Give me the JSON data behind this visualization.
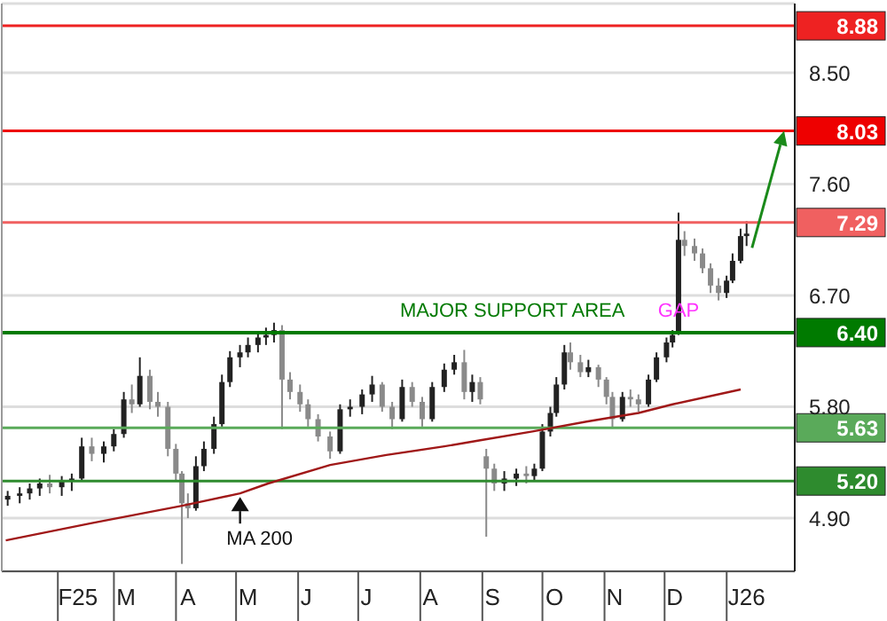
{
  "chart_data": {
    "type": "candlestick",
    "colors": [
      "#222222",
      "#222222",
      "#222222",
      "#222222",
      "#8a8a8a",
      "#222222",
      "#222222",
      "#222222",
      "#8a8a8a",
      "#222222",
      "#222222",
      "#222222",
      "#8a8a8a",
      "#222222",
      "#8a8a8a",
      "#8a8a8a",
      "#8a8a8a",
      "#8a8a8a",
      "#8a8a8a",
      "#8a8a8a",
      "#222222",
      "#222222",
      "#222222",
      "#222222",
      "#222222",
      "#222222",
      "#222222",
      "#222222",
      "#222222",
      "#222222",
      "#8a8a8a",
      "#8a8a8a",
      "#8a8a8a",
      "#8a8a8a",
      "#8a8a8a",
      "#8a8a8a",
      "#222222",
      "#222222",
      "#222222",
      "#222222",
      "#8a8a8a",
      "#8a8a8a",
      "#222222",
      "#8a8a8a",
      "#8a8a8a",
      "#222222",
      "#222222",
      "#222222",
      "#8a8a8a",
      "#222222",
      "#8a8a8a",
      "#8a8a8a",
      "#8a8a8a",
      "#222222",
      "#222222",
      "#8a8a8a",
      "#222222",
      "#222222",
      "#222222",
      "#222222",
      "#222222",
      "#8a8a8a",
      "#8a8a8a",
      "#222222",
      "#8a8a8a",
      "#8a8a8a",
      "#8a8a8a",
      "#222222",
      "#8a8a8a",
      "#8a8a8a",
      "#222222",
      "#222222",
      "#222222",
      "#222222",
      "#222222",
      "#8a8a8a",
      "#8a8a8a",
      "#8a8a8a",
      "#8a8a8a",
      "#8a8a8a",
      "#222222",
      "#222222",
      "#222222",
      "#222222"
    ],
    "x": [
      "2025-01-07",
      "2025-01-13",
      "2025-01-18",
      "2025-01-23",
      "2025-01-28",
      "2025-02-03",
      "2025-02-08",
      "2025-02-13",
      "2025-02-18",
      "2025-02-24",
      "2025-03-01",
      "2025-03-06",
      "2025-03-10",
      "2025-03-14",
      "2025-03-19",
      "2025-03-23",
      "2025-03-28",
      "2025-04-01",
      "2025-04-04",
      "2025-04-07",
      "2025-04-11",
      "2025-04-15",
      "2025-04-20",
      "2025-04-24",
      "2025-04-28",
      "2025-05-03",
      "2025-05-07",
      "2025-05-12",
      "2025-05-16",
      "2025-05-20",
      "2025-05-24",
      "2025-05-28",
      "2025-06-02",
      "2025-06-06",
      "2025-06-11",
      "2025-06-17",
      "2025-06-22",
      "2025-06-27",
      "2025-07-03",
      "2025-07-08",
      "2025-07-13",
      "2025-07-18",
      "2025-07-23",
      "2025-07-28",
      "2025-08-02",
      "2025-08-07",
      "2025-08-13",
      "2025-08-18",
      "2025-08-23",
      "2025-08-27",
      "2025-08-31",
      "2025-09-03",
      "2025-09-07",
      "2025-09-12",
      "2025-09-18",
      "2025-09-23",
      "2025-09-27",
      "2025-10-01",
      "2025-10-05",
      "2025-10-08",
      "2025-10-12",
      "2025-10-15",
      "2025-10-20",
      "2025-10-24",
      "2025-10-29",
      "2025-11-02",
      "2025-11-05",
      "2025-11-10",
      "2025-11-14",
      "2025-11-18",
      "2025-11-23",
      "2025-11-27",
      "2025-12-02",
      "2025-12-05",
      "2025-12-08",
      "2025-12-11",
      "2025-12-16",
      "2025-12-20",
      "2025-12-24",
      "2025-12-28",
      "2026-01-01",
      "2026-01-04",
      "2026-01-08",
      "2026-01-11"
    ],
    "ohlc": [
      [
        5.05,
        5.12,
        5.0,
        5.08
      ],
      [
        5.08,
        5.15,
        5.02,
        5.1
      ],
      [
        5.1,
        5.18,
        5.05,
        5.14
      ],
      [
        5.14,
        5.22,
        5.08,
        5.18
      ],
      [
        5.18,
        5.25,
        5.1,
        5.15
      ],
      [
        5.15,
        5.24,
        5.08,
        5.2
      ],
      [
        5.2,
        5.26,
        5.12,
        5.22
      ],
      [
        5.22,
        5.55,
        5.2,
        5.48
      ],
      [
        5.48,
        5.55,
        5.36,
        5.42
      ],
      [
        5.42,
        5.52,
        5.35,
        5.48
      ],
      [
        5.48,
        5.62,
        5.44,
        5.58
      ],
      [
        5.58,
        5.92,
        5.55,
        5.86
      ],
      [
        5.86,
        5.98,
        5.75,
        5.82
      ],
      [
        5.82,
        6.2,
        5.8,
        6.05
      ],
      [
        6.05,
        6.1,
        5.78,
        5.84
      ],
      [
        5.84,
        5.92,
        5.72,
        5.8
      ],
      [
        5.8,
        5.84,
        5.4,
        5.46
      ],
      [
        5.46,
        5.5,
        5.2,
        5.26
      ],
      [
        5.26,
        5.28,
        4.53,
        5.02
      ],
      [
        5.02,
        5.1,
        4.9,
        4.98
      ],
      [
        4.98,
        5.4,
        4.96,
        5.32
      ],
      [
        5.32,
        5.52,
        5.28,
        5.46
      ],
      [
        5.46,
        5.72,
        5.42,
        5.66
      ],
      [
        5.66,
        6.06,
        5.64,
        6.0
      ],
      [
        6.0,
        6.25,
        5.96,
        6.2
      ],
      [
        6.2,
        6.3,
        6.12,
        6.24
      ],
      [
        6.24,
        6.36,
        6.2,
        6.3
      ],
      [
        6.3,
        6.4,
        6.24,
        6.36
      ],
      [
        6.36,
        6.44,
        6.3,
        6.38
      ],
      [
        6.38,
        6.48,
        6.32,
        6.42
      ],
      [
        6.42,
        6.46,
        5.62,
        6.02
      ],
      [
        6.02,
        6.08,
        5.86,
        5.92
      ],
      [
        5.92,
        5.98,
        5.76,
        5.82
      ],
      [
        5.82,
        5.86,
        5.64,
        5.7
      ],
      [
        5.7,
        5.74,
        5.52,
        5.56
      ],
      [
        5.56,
        5.6,
        5.38,
        5.44
      ],
      [
        5.44,
        5.82,
        5.42,
        5.78
      ],
      [
        5.78,
        5.86,
        5.72,
        5.8
      ],
      [
        5.8,
        5.94,
        5.74,
        5.9
      ],
      [
        5.9,
        6.05,
        5.84,
        5.98
      ],
      [
        5.98,
        6.0,
        5.76,
        5.8
      ],
      [
        5.8,
        5.84,
        5.62,
        5.7
      ],
      [
        5.7,
        6.02,
        5.68,
        5.96
      ],
      [
        5.96,
        6.0,
        5.8,
        5.84
      ],
      [
        5.84,
        5.88,
        5.64,
        5.7
      ],
      [
        5.7,
        6.0,
        5.68,
        5.96
      ],
      [
        5.96,
        6.15,
        5.92,
        6.1
      ],
      [
        6.1,
        6.22,
        6.06,
        6.16
      ],
      [
        6.16,
        6.26,
        5.86,
        5.92
      ],
      [
        5.92,
        6.06,
        5.84,
        6.0
      ],
      [
        6.0,
        6.04,
        5.82,
        5.86
      ],
      [
        5.4,
        5.46,
        4.75,
        5.3
      ],
      [
        5.3,
        5.34,
        5.12,
        5.18
      ],
      [
        5.18,
        5.28,
        5.12,
        5.22
      ],
      [
        5.22,
        5.3,
        5.16,
        5.26
      ],
      [
        5.26,
        5.32,
        5.18,
        5.24
      ],
      [
        5.24,
        5.34,
        5.2,
        5.3
      ],
      [
        5.3,
        5.66,
        5.28,
        5.6
      ],
      [
        5.6,
        5.8,
        5.56,
        5.75
      ],
      [
        5.75,
        6.04,
        5.72,
        5.98
      ],
      [
        5.98,
        6.3,
        5.94,
        6.24
      ],
      [
        6.24,
        6.32,
        6.1,
        6.16
      ],
      [
        6.16,
        6.22,
        6.04,
        6.08
      ],
      [
        6.08,
        6.18,
        6.04,
        6.12
      ],
      [
        6.12,
        6.14,
        5.96,
        6.02
      ],
      [
        6.02,
        6.04,
        5.82,
        5.88
      ],
      [
        5.88,
        5.92,
        5.63,
        5.7
      ],
      [
        5.7,
        5.92,
        5.68,
        5.88
      ],
      [
        5.88,
        5.94,
        5.8,
        5.86
      ],
      [
        5.86,
        5.9,
        5.76,
        5.82
      ],
      [
        5.82,
        6.06,
        5.8,
        6.02
      ],
      [
        6.02,
        6.24,
        6.0,
        6.2
      ],
      [
        6.2,
        6.36,
        6.16,
        6.32
      ],
      [
        6.32,
        6.42,
        6.28,
        6.38
      ],
      [
        6.4,
        7.37,
        6.38,
        7.15
      ],
      [
        7.15,
        7.22,
        7.02,
        7.1
      ],
      [
        7.1,
        7.16,
        6.98,
        7.04
      ],
      [
        7.04,
        7.08,
        6.88,
        6.92
      ],
      [
        6.92,
        6.96,
        6.72,
        6.78
      ],
      [
        6.78,
        6.84,
        6.66,
        6.72
      ],
      [
        6.72,
        6.86,
        6.68,
        6.82
      ],
      [
        6.82,
        7.04,
        6.8,
        6.98
      ],
      [
        6.98,
        7.24,
        6.96,
        7.18
      ],
      [
        7.18,
        7.3,
        7.1,
        7.2
      ]
    ],
    "series": [
      {
        "type": "line",
        "color": "#a01818",
        "x": [
          "2025-01-06",
          "2025-02-18",
          "2025-04-04",
          "2025-05-03",
          "2025-05-17",
          "2025-06-17",
          "2025-07-15",
          "2025-08-13",
          "2025-08-31",
          "2025-09-26",
          "2025-10-23",
          "2025-11-18",
          "2025-12-05",
          "2026-01-08"
        ],
        "values": [
          4.72,
          4.86,
          5.0,
          5.1,
          5.18,
          5.33,
          5.41,
          5.48,
          5.53,
          5.6,
          5.68,
          5.75,
          5.82,
          5.94
        ]
      }
    ],
    "xlim": [
      "2025-01-04",
      "2026-02-04"
    ],
    "xticks": [
      {
        "value": "2025-02-11",
        "label": "F25"
      },
      {
        "value": "2025-03-07",
        "label": "M"
      },
      {
        "value": "2025-04-07",
        "label": "A"
      },
      {
        "value": "2025-05-07",
        "label": "M"
      },
      {
        "value": "2025-06-05",
        "label": "J"
      },
      {
        "value": "2025-07-05",
        "label": "J"
      },
      {
        "value": "2025-08-06",
        "label": "A"
      },
      {
        "value": "2025-09-06",
        "label": "S"
      },
      {
        "value": "2025-10-07",
        "label": "O"
      },
      {
        "value": "2025-11-06",
        "label": "N"
      },
      {
        "value": "2025-12-06",
        "label": "D"
      },
      {
        "value": "2026-01-11",
        "label": "J26"
      }
    ],
    "ylim": [
      4.47,
      9.06
    ],
    "yticks": [
      {
        "value": 4.9,
        "label": "4.90"
      },
      {
        "value": 5.8,
        "label": "5.80"
      },
      {
        "value": 6.7,
        "label": "6.70"
      },
      {
        "value": 7.6,
        "label": "7.60"
      },
      {
        "value": 8.5,
        "label": "8.50"
      }
    ],
    "grid": "y",
    "ref_lines": [
      {
        "axis": "y",
        "value": 8.88,
        "label": "8.88",
        "color": "#ee2222"
      },
      {
        "axis": "y",
        "value": 8.03,
        "label": "8.03",
        "color": "#ee0000"
      },
      {
        "axis": "y",
        "value": 7.29,
        "label": "7.29",
        "color": "#f06060"
      },
      {
        "axis": "y",
        "value": 6.4,
        "label": "6.40",
        "color": "#007a00"
      },
      {
        "axis": "y",
        "value": 5.63,
        "label": "5.63",
        "color": "#5aaa5a"
      },
      {
        "axis": "y",
        "value": 5.2,
        "label": "5.20",
        "color": "#2e8b2e"
      }
    ],
    "annotations": [
      {
        "text": "MAJOR SUPPORT AREA",
        "x": "2025-09-16",
        "y": 6.4
      },
      {
        "text": "GAP",
        "x": "2025-12-08",
        "y": 6.4
      },
      {
        "text": "MA 200",
        "x": "2025-05-03",
        "y": 5.1
      }
    ]
  }
}
